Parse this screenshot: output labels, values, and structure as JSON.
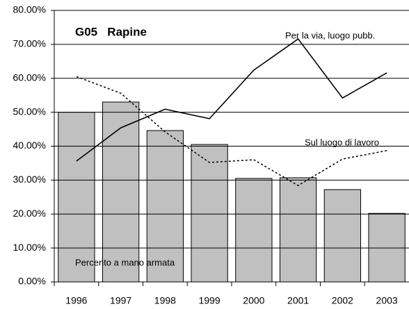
{
  "chart_data": {
    "type": "bar",
    "title": "G05   Rapine",
    "categories": [
      "1996",
      "1997",
      "1998",
      "1999",
      "2000",
      "2001",
      "2002",
      "2003"
    ],
    "series": [
      {
        "name": "Percento a mano armata",
        "type": "bar",
        "color": "#c0c0c0",
        "values": [
          50,
          53,
          44.6,
          40.5,
          30.5,
          30.7,
          27.2,
          20.2
        ]
      },
      {
        "name": "Per la via, luogo pubb.",
        "type": "line",
        "dash": "solid",
        "color": "#000000",
        "values": [
          35.6,
          45.4,
          50.9,
          48.1,
          62.4,
          71.6,
          54.2,
          61.6
        ]
      },
      {
        "name": "Sul luogo di lavoro",
        "type": "line",
        "dash": "dotted",
        "color": "#000000",
        "values": [
          60.5,
          55.6,
          44.2,
          35.2,
          36,
          28.4,
          36.2,
          38.7
        ]
      }
    ],
    "ylim": [
      0,
      80
    ],
    "yticks": [
      {
        "value": 0,
        "label": "0.00%"
      },
      {
        "value": 10,
        "label": "10.00%"
      },
      {
        "value": 20,
        "label": "20.00%"
      },
      {
        "value": 30,
        "label": "30.00%"
      },
      {
        "value": 40,
        "label": "40.00%"
      },
      {
        "value": 50,
        "label": "50.00%"
      },
      {
        "value": 60,
        "label": "60.00%"
      },
      {
        "value": 70,
        "label": "70.00%"
      },
      {
        "value": 80,
        "label": "80.00%"
      }
    ],
    "grid": true
  }
}
